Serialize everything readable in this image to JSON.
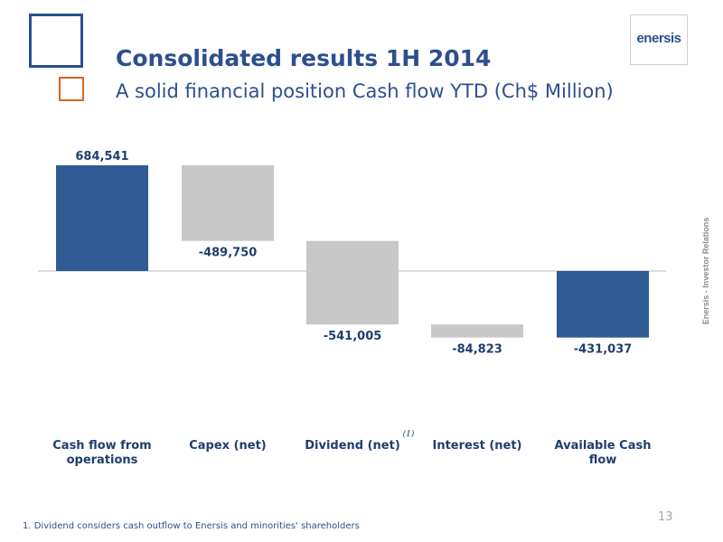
{
  "header": {
    "title": "Consolidated results 1H 2014",
    "subtitle": "A solid financial position Cash flow YTD (Ch$ Million)"
  },
  "logo": {
    "text": "enersis"
  },
  "side_label": "Enersis - Investor Relations",
  "page_number": "13",
  "footnote": "1. Dividend considers cash outflow to Enersis and minorities' shareholders",
  "colors": {
    "primary": "#2f5a92",
    "secondary": "#c8c8c8",
    "label": "#1f3e6e",
    "baseline": "#b8b8b8"
  },
  "chart_data": {
    "type": "bar",
    "subtype": "waterfall",
    "categories": [
      {
        "lines": [
          "Cash flow from",
          "operations"
        ],
        "sup": ""
      },
      {
        "lines": [
          "Capex (net)"
        ],
        "sup": ""
      },
      {
        "lines": [
          "Dividend (net)"
        ],
        "sup": "(1)"
      },
      {
        "lines": [
          "Interest (net)"
        ],
        "sup": ""
      },
      {
        "lines": [
          "Available Cash",
          "flow"
        ],
        "sup": ""
      }
    ],
    "values": [
      684541,
      -489750,
      -541005,
      -84823,
      -431037
    ],
    "value_labels": [
      "684,541",
      "-489,750",
      "-541,005",
      "-84,823",
      "-431,037"
    ],
    "kinds": [
      "total",
      "step",
      "step",
      "step",
      "total"
    ],
    "ylim": [
      -600000,
      700000
    ],
    "grid": false,
    "legend": "none"
  }
}
